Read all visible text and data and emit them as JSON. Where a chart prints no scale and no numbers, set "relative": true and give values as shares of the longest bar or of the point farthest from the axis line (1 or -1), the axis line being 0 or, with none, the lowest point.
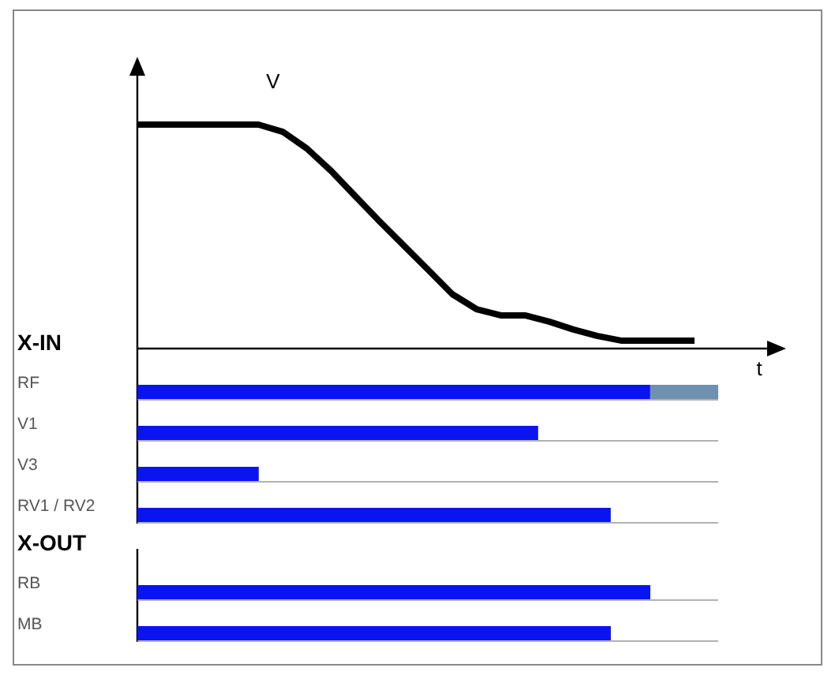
{
  "chart_data": [
    {
      "type": "line",
      "relative": true,
      "ylabel": "V",
      "xlabel": "t",
      "marker": "none",
      "line_style": "solid",
      "categories": [
        null,
        null,
        null,
        null,
        null,
        null,
        null,
        null,
        null,
        null,
        null,
        null,
        null,
        null,
        null,
        null,
        null,
        null,
        null,
        null,
        null,
        null,
        null,
        null
      ],
      "series": [
        {
          "color": "#000000",
          "values": [
            1,
            1,
            1,
            1,
            1,
            1,
            0.968,
            0.893,
            0.793,
            0.68,
            0.568,
            0.46,
            0.352,
            0.243,
            0.176,
            0.148,
            0.148,
            0.12,
            0.085,
            0.056,
            0.035,
            0.035,
            0.035,
            0.035
          ]
        }
      ]
    },
    {
      "type": "bar",
      "relative": true,
      "orientation": "horizontal",
      "stacked": true,
      "title": "X-IN",
      "categories": [
        "RF",
        "V1",
        "V3",
        "RV1 / RV2"
      ],
      "series": [
        {
          "color": "#0a14f0",
          "values": [
            0.883,
            0.69,
            0.209,
            0.815
          ]
        },
        {
          "color": "#7090b0",
          "values": [
            0.117,
            null,
            null,
            null
          ]
        }
      ]
    },
    {
      "type": "bar",
      "relative": true,
      "orientation": "horizontal",
      "title": "X-OUT",
      "categories": [
        "RB",
        "MB"
      ],
      "series": [
        {
          "color": "#0a14f0",
          "values": [
            1,
            0.923
          ]
        }
      ]
    }
  ]
}
